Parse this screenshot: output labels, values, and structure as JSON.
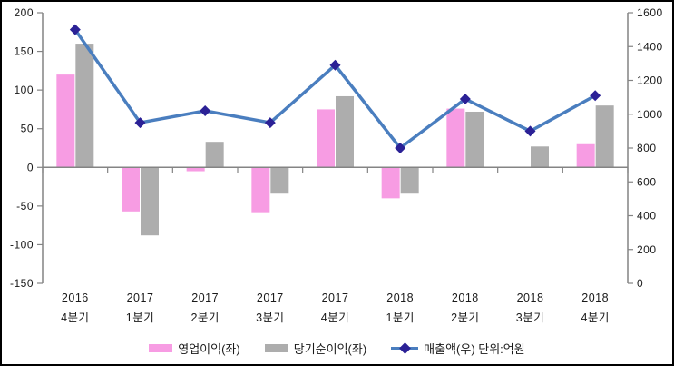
{
  "chart_data": {
    "type": "combo-bar-line",
    "title": "",
    "categories_line1": [
      "2016",
      "2017",
      "2017",
      "2017",
      "2017",
      "2018",
      "2018",
      "2018",
      "2018"
    ],
    "categories_line2": [
      "4분기",
      "1분기",
      "2분기",
      "3분기",
      "4분기",
      "1분기",
      "2분기",
      "3분기",
      "4분기"
    ],
    "series": [
      {
        "name": "영업이익(좌)",
        "type": "bar",
        "axis": "left",
        "values": [
          120,
          -57,
          -5,
          -58,
          75,
          -40,
          76,
          0,
          30
        ]
      },
      {
        "name": "당기순이익(좌)",
        "type": "bar",
        "axis": "left",
        "values": [
          160,
          -88,
          33,
          -34,
          92,
          -34,
          72,
          27,
          80
        ]
      },
      {
        "name": "매출액(우) 단위:억원",
        "type": "line",
        "axis": "right",
        "values": [
          1500,
          950,
          1020,
          950,
          1290,
          800,
          1090,
          900,
          1110
        ]
      }
    ],
    "left_axis": {
      "min": -150,
      "max": 200,
      "step": 50,
      "tick_labels": [
        "200",
        "150",
        "100",
        "50",
        "0",
        "-50",
        "-100",
        "-150"
      ]
    },
    "right_axis": {
      "min": 0,
      "max": 1600,
      "step": 200,
      "tick_labels": [
        "1600",
        "1400",
        "1200",
        "1000",
        "800",
        "600",
        "400",
        "200",
        "0"
      ]
    },
    "legend": [
      "영업이익(좌)",
      "당기순이익(좌)",
      "매출액(우) 단위:억원"
    ],
    "legend_position": "bottom",
    "grid": false
  },
  "colors": {
    "operating_profit_bar": "#F79CE3",
    "net_income_bar": "#ADADAD",
    "revenue_line": "#4A7EBF",
    "revenue_marker": "#2B2196",
    "axis_line": "#848484",
    "text": "#1a1a1a",
    "background": "#ffffff",
    "border": "#000000"
  }
}
